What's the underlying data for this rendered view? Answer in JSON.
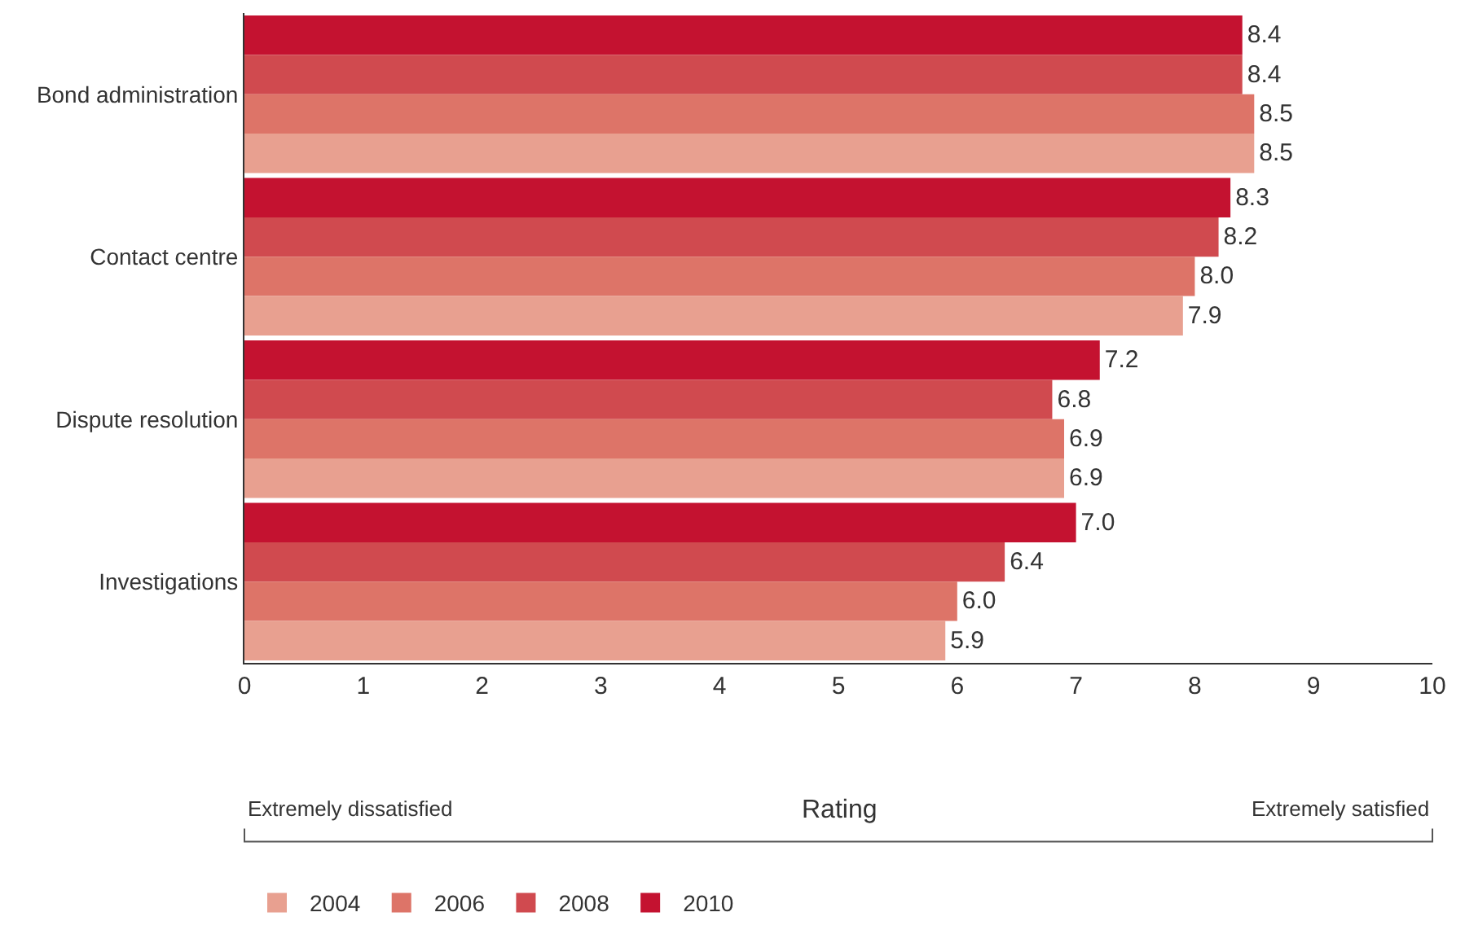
{
  "chart_data": {
    "type": "bar",
    "orientation": "horizontal",
    "xlabel": "Rating",
    "categories": [
      "Bond administration",
      "Contact centre",
      "Dispute resolution",
      "Investigations"
    ],
    "series": [
      {
        "name": "2004",
        "color": "#e8a090",
        "values": [
          8.5,
          7.9,
          6.9,
          5.9
        ],
        "value_labels": [
          "8.5",
          "7.9",
          "6.9",
          "5.9"
        ]
      },
      {
        "name": "2006",
        "color": "#dd7468",
        "values": [
          8.5,
          8.0,
          6.9,
          6.0
        ],
        "value_labels": [
          "8.5",
          "8.0",
          "6.9",
          "6.0"
        ]
      },
      {
        "name": "2008",
        "color": "#d04a4f",
        "values": [
          8.4,
          8.2,
          6.8,
          6.4
        ],
        "value_labels": [
          "8.4",
          "8.2",
          "6.8",
          "6.4"
        ]
      },
      {
        "name": "2010",
        "color": "#c41230",
        "values": [
          8.4,
          8.3,
          7.2,
          7.0
        ],
        "value_labels": [
          "8.4",
          "8.3",
          "7.2",
          "7.0"
        ]
      }
    ],
    "xlim": [
      0,
      10
    ],
    "xticks": [
      0,
      1,
      2,
      3,
      4,
      5,
      6,
      7,
      8,
      9,
      10
    ],
    "legend": "bottom",
    "annotations": [
      "Extremely dissatisfied",
      "Extremely satisfied"
    ]
  }
}
